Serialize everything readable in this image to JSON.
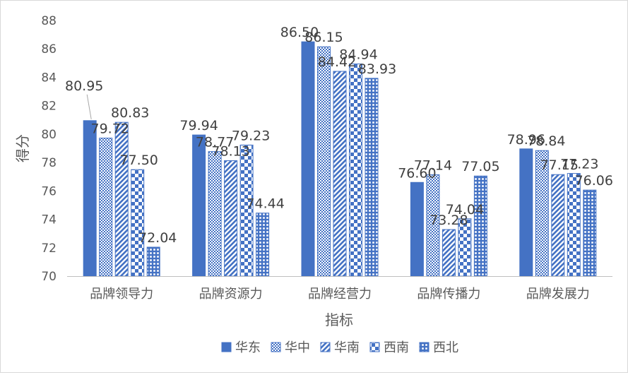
{
  "chart_data": {
    "type": "bar",
    "title": "",
    "xlabel": "指标",
    "ylabel": "得分",
    "ylim": [
      70,
      88
    ],
    "ytick_step": 2,
    "yticks": [
      "70",
      "72",
      "74",
      "76",
      "78",
      "80",
      "82",
      "84",
      "86",
      "88"
    ],
    "grid": false,
    "legend_position": "bottom",
    "categories": [
      "品牌领导力",
      "品牌资源力",
      "品牌经营力",
      "品牌传播力",
      "品牌发展力"
    ],
    "series": [
      {
        "name": "华东",
        "pattern": "solid",
        "values": [
          80.95,
          79.94,
          86.5,
          76.6,
          78.96
        ],
        "labels": [
          "80.95",
          "79.94",
          "86.50",
          "76.60",
          "78.96"
        ]
      },
      {
        "name": "华中",
        "pattern": "dots",
        "values": [
          79.72,
          78.77,
          86.15,
          77.14,
          78.84
        ],
        "labels": [
          "79.72",
          "78.77",
          "86.15",
          "77.14",
          "78.84"
        ]
      },
      {
        "name": "华南",
        "pattern": "diag",
        "values": [
          80.83,
          78.13,
          84.42,
          73.28,
          77.15
        ],
        "labels": [
          "80.83",
          "78.13",
          "84.42",
          "73.28",
          "77.15"
        ]
      },
      {
        "name": "西南",
        "pattern": "checks",
        "values": [
          77.5,
          79.23,
          84.94,
          74.04,
          77.23
        ],
        "labels": [
          "77.50",
          "79.23",
          "84.94",
          "74.04",
          "77.23"
        ]
      },
      {
        "name": "西北",
        "pattern": "grid",
        "values": [
          72.04,
          74.44,
          83.93,
          77.05,
          76.06
        ],
        "labels": [
          "72.04",
          "74.44",
          "83.93",
          "77.05",
          "76.06"
        ]
      }
    ],
    "colors": {
      "bar": "#4472C4",
      "axis": "#bfbfbf",
      "text": "#595959",
      "label": "#404040"
    }
  }
}
